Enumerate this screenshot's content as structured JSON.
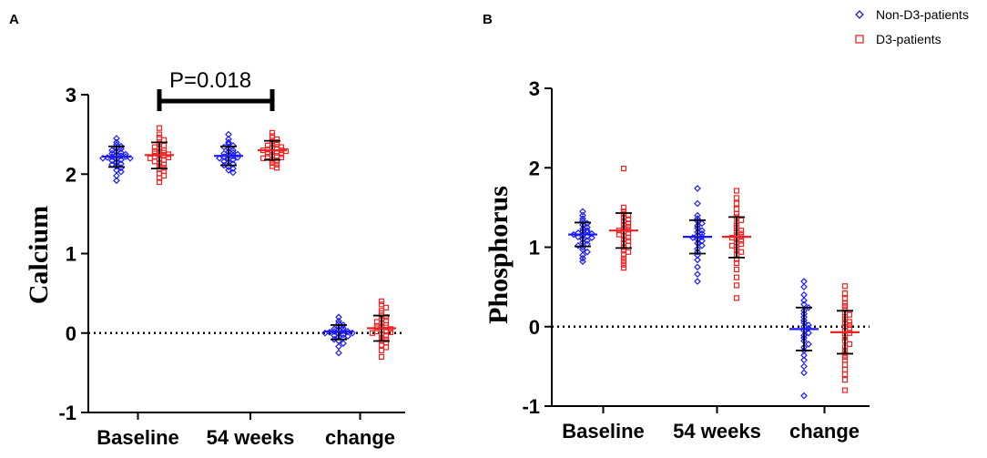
{
  "colors": {
    "non_d3": "#1a1aff",
    "d3": "#ee2222",
    "axis": "#000000"
  },
  "legend": [
    {
      "label": "Non-D3-patients",
      "marker": "diamond",
      "color": "#1a1aff"
    },
    {
      "label": "D3-patients",
      "marker": "square",
      "color": "#ee2222"
    }
  ],
  "chart_data": [
    {
      "type": "scatter",
      "panel": "A",
      "ylabel": "Calcium",
      "xlabel": "",
      "ylim": [
        -1,
        3
      ],
      "yticks": [
        -1,
        0,
        1,
        2,
        3
      ],
      "category_labels": [
        "Baseline",
        "54 weeks",
        "change"
      ],
      "reference_line": 0,
      "significance": {
        "text": "P=0.018",
        "from": "Baseline D3-patients",
        "to": "54 weeks D3-patients"
      },
      "groups": [
        {
          "category": "Baseline",
          "series": "Non-D3-patients",
          "mean": 2.22,
          "sd_low": 2.09,
          "sd_high": 2.35,
          "values": [
            2.45,
            2.4,
            2.37,
            2.35,
            2.33,
            2.32,
            2.3,
            2.28,
            2.27,
            2.26,
            2.25,
            2.24,
            2.23,
            2.22,
            2.22,
            2.21,
            2.2,
            2.2,
            2.19,
            2.18,
            2.17,
            2.15,
            2.13,
            2.12,
            2.1,
            2.08,
            2.05,
            2.03,
            1.98,
            1.92
          ]
        },
        {
          "category": "Baseline",
          "series": "D3-patients",
          "mean": 2.24,
          "sd_low": 2.07,
          "sd_high": 2.4,
          "values": [
            2.58,
            2.5,
            2.46,
            2.43,
            2.4,
            2.38,
            2.36,
            2.34,
            2.32,
            2.3,
            2.29,
            2.28,
            2.27,
            2.26,
            2.25,
            2.24,
            2.23,
            2.22,
            2.21,
            2.2,
            2.19,
            2.18,
            2.16,
            2.14,
            2.12,
            2.1,
            2.08,
            2.06,
            2.04,
            2.01,
            1.98,
            1.95,
            1.9
          ]
        },
        {
          "category": "54 weeks",
          "series": "Non-D3-patients",
          "mean": 2.23,
          "sd_low": 2.11,
          "sd_high": 2.35,
          "values": [
            2.5,
            2.44,
            2.4,
            2.38,
            2.36,
            2.34,
            2.32,
            2.3,
            2.28,
            2.27,
            2.26,
            2.25,
            2.24,
            2.23,
            2.22,
            2.21,
            2.2,
            2.19,
            2.18,
            2.16,
            2.15,
            2.13,
            2.11,
            2.09,
            2.07,
            2.05,
            2.02
          ]
        },
        {
          "category": "54 weeks",
          "series": "D3-patients",
          "mean": 2.3,
          "sd_low": 2.18,
          "sd_high": 2.42,
          "values": [
            2.52,
            2.48,
            2.46,
            2.44,
            2.42,
            2.4,
            2.38,
            2.37,
            2.36,
            2.34,
            2.33,
            2.32,
            2.31,
            2.3,
            2.3,
            2.29,
            2.28,
            2.27,
            2.26,
            2.25,
            2.24,
            2.23,
            2.22,
            2.21,
            2.2,
            2.18,
            2.16,
            2.14,
            2.12,
            2.1,
            2.08
          ]
        },
        {
          "category": "change",
          "series": "Non-D3-patients",
          "mean": 0.02,
          "sd_low": -0.08,
          "sd_high": 0.1,
          "values": [
            0.2,
            0.15,
            0.12,
            0.1,
            0.08,
            0.06,
            0.05,
            0.04,
            0.03,
            0.02,
            0.02,
            0.01,
            0.0,
            0.0,
            -0.01,
            -0.02,
            -0.03,
            -0.04,
            -0.05,
            -0.06,
            -0.08,
            -0.1,
            -0.13,
            -0.17,
            -0.25
          ]
        },
        {
          "category": "change",
          "series": "D3-patients",
          "mean": 0.06,
          "sd_low": -0.1,
          "sd_high": 0.22,
          "values": [
            0.4,
            0.36,
            0.32,
            0.28,
            0.25,
            0.22,
            0.2,
            0.18,
            0.16,
            0.14,
            0.12,
            0.1,
            0.09,
            0.08,
            0.07,
            0.06,
            0.05,
            0.04,
            0.03,
            0.02,
            0.01,
            0.0,
            -0.02,
            -0.04,
            -0.06,
            -0.08,
            -0.1,
            -0.12,
            -0.15,
            -0.18,
            -0.22,
            -0.3
          ]
        }
      ]
    },
    {
      "type": "scatter",
      "panel": "B",
      "ylabel": "Phosphorus",
      "xlabel": "",
      "ylim": [
        -1,
        3
      ],
      "yticks": [
        -1,
        0,
        1,
        2,
        3
      ],
      "category_labels": [
        "Baseline",
        "54 weeks",
        "change"
      ],
      "reference_line": 0,
      "groups": [
        {
          "category": "Baseline",
          "series": "Non-D3-patients",
          "mean": 1.16,
          "sd_low": 1.01,
          "sd_high": 1.31,
          "values": [
            1.45,
            1.4,
            1.36,
            1.33,
            1.3,
            1.28,
            1.25,
            1.23,
            1.21,
            1.2,
            1.19,
            1.18,
            1.17,
            1.16,
            1.15,
            1.14,
            1.13,
            1.12,
            1.1,
            1.08,
            1.06,
            1.04,
            1.02,
            1.0,
            0.97,
            0.94,
            0.9,
            0.86,
            0.82
          ]
        },
        {
          "category": "Baseline",
          "series": "D3-patients",
          "mean": 1.21,
          "sd_low": 0.99,
          "sd_high": 1.43,
          "values": [
            1.99,
            1.5,
            1.45,
            1.42,
            1.4,
            1.37,
            1.35,
            1.33,
            1.3,
            1.28,
            1.26,
            1.24,
            1.22,
            1.21,
            1.2,
            1.18,
            1.16,
            1.14,
            1.12,
            1.1,
            1.08,
            1.05,
            1.02,
            1.0,
            0.97,
            0.94,
            0.9,
            0.86,
            0.82,
            0.78,
            0.74
          ]
        },
        {
          "category": "54 weeks",
          "series": "Non-D3-patients",
          "mean": 1.13,
          "sd_low": 0.92,
          "sd_high": 1.34,
          "values": [
            1.74,
            1.55,
            1.4,
            1.36,
            1.33,
            1.3,
            1.27,
            1.24,
            1.21,
            1.19,
            1.17,
            1.15,
            1.13,
            1.12,
            1.1,
            1.08,
            1.05,
            1.02,
            0.98,
            0.94,
            0.9,
            0.84,
            0.75,
            0.66,
            0.57
          ]
        },
        {
          "category": "54 weeks",
          "series": "D3-patients",
          "mean": 1.13,
          "sd_low": 0.87,
          "sd_high": 1.38,
          "values": [
            1.71,
            1.62,
            1.55,
            1.48,
            1.42,
            1.38,
            1.34,
            1.3,
            1.27,
            1.24,
            1.21,
            1.19,
            1.17,
            1.15,
            1.13,
            1.12,
            1.1,
            1.08,
            1.06,
            1.04,
            1.02,
            1.0,
            0.97,
            0.94,
            0.9,
            0.85,
            0.8,
            0.72,
            0.62,
            0.52,
            0.36
          ]
        },
        {
          "category": "change",
          "series": "Non-D3-patients",
          "mean": -0.03,
          "sd_low": -0.3,
          "sd_high": 0.24,
          "values": [
            0.57,
            0.5,
            0.4,
            0.33,
            0.28,
            0.24,
            0.2,
            0.16,
            0.12,
            0.08,
            0.05,
            0.02,
            0.0,
            -0.02,
            -0.05,
            -0.08,
            -0.11,
            -0.14,
            -0.18,
            -0.22,
            -0.26,
            -0.3,
            -0.36,
            -0.42,
            -0.5,
            -0.58,
            -0.87
          ]
        },
        {
          "category": "change",
          "series": "D3-patients",
          "mean": -0.07,
          "sd_low": -0.34,
          "sd_high": 0.2,
          "values": [
            0.51,
            0.42,
            0.35,
            0.3,
            0.26,
            0.22,
            0.18,
            0.15,
            0.12,
            0.09,
            0.06,
            0.04,
            0.02,
            0.0,
            -0.02,
            -0.05,
            -0.08,
            -0.11,
            -0.14,
            -0.18,
            -0.22,
            -0.26,
            -0.3,
            -0.34,
            -0.38,
            -0.42,
            -0.48,
            -0.54,
            -0.6,
            -0.67,
            -0.8
          ]
        }
      ]
    }
  ]
}
